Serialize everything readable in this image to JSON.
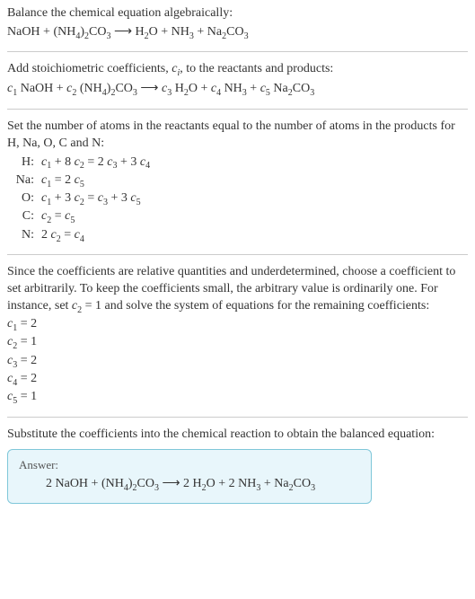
{
  "intro": {
    "line1": "Balance the chemical equation algebraically:",
    "reaction_html": "NaOH + (NH<sub class='sub'>4</sub>)<sub class='sub'>2</sub>CO<sub class='sub'>3</sub>  ⟶  H<sub class='sub'>2</sub>O + NH<sub class='sub'>3</sub> + Na<sub class='sub'>2</sub>CO<sub class='sub'>3</sub>"
  },
  "stoich": {
    "text_html": "Add stoichiometric coefficients, <span class='ital'>c<sub class='sub'>i</sub></span>, to the reactants and products:",
    "reaction_html": "<span class='ital'>c</span><sub class='sub'>1</sub> NaOH + <span class='ital'>c</span><sub class='sub'>2</sub> (NH<sub class='sub'>4</sub>)<sub class='sub'>2</sub>CO<sub class='sub'>3</sub>  ⟶  <span class='ital'>c</span><sub class='sub'>3</sub> H<sub class='sub'>2</sub>O + <span class='ital'>c</span><sub class='sub'>4</sub> NH<sub class='sub'>3</sub> + <span class='ital'>c</span><sub class='sub'>5</sub> Na<sub class='sub'>2</sub>CO<sub class='sub'>3</sub>"
  },
  "atoms": {
    "text": "Set the number of atoms in the reactants equal to the number of atoms in the products for H, Na, O, C and N:",
    "rows": [
      {
        "label": "H:",
        "eq_html": "<span class='ital'>c</span><sub class='sub'>1</sub> + 8 <span class='ital'>c</span><sub class='sub'>2</sub> = 2 <span class='ital'>c</span><sub class='sub'>3</sub> + 3 <span class='ital'>c</span><sub class='sub'>4</sub>"
      },
      {
        "label": "Na:",
        "eq_html": "<span class='ital'>c</span><sub class='sub'>1</sub> = 2 <span class='ital'>c</span><sub class='sub'>5</sub>"
      },
      {
        "label": "O:",
        "eq_html": "<span class='ital'>c</span><sub class='sub'>1</sub> + 3 <span class='ital'>c</span><sub class='sub'>2</sub> = <span class='ital'>c</span><sub class='sub'>3</sub> + 3 <span class='ital'>c</span><sub class='sub'>5</sub>"
      },
      {
        "label": "C:",
        "eq_html": "<span class='ital'>c</span><sub class='sub'>2</sub> = <span class='ital'>c</span><sub class='sub'>5</sub>"
      },
      {
        "label": "N:",
        "eq_html": "2 <span class='ital'>c</span><sub class='sub'>2</sub> = <span class='ital'>c</span><sub class='sub'>4</sub>"
      }
    ]
  },
  "solve": {
    "text_html": "Since the coefficients are relative quantities and underdetermined, choose a coefficient to set arbitrarily. To keep the coefficients small, the arbitrary value is ordinarily one. For instance, set <span class='ital'>c</span><sub class='sub'>2</sub> = 1 and solve the system of equations for the remaining coefficients:",
    "coeffs": [
      "<span class='ital'>c</span><sub class='sub'>1</sub> = 2",
      "<span class='ital'>c</span><sub class='sub'>2</sub> = 1",
      "<span class='ital'>c</span><sub class='sub'>3</sub> = 2",
      "<span class='ital'>c</span><sub class='sub'>4</sub> = 2",
      "<span class='ital'>c</span><sub class='sub'>5</sub> = 1"
    ]
  },
  "final": {
    "text": "Substitute the coefficients into the chemical reaction to obtain the balanced equation:",
    "answer_label": "Answer:",
    "answer_eq_html": "2 NaOH + (NH<sub class='sub'>4</sub>)<sub class='sub'>2</sub>CO<sub class='sub'>3</sub>  ⟶  2 H<sub class='sub'>2</sub>O + 2 NH<sub class='sub'>3</sub> + Na<sub class='sub'>2</sub>CO<sub class='sub'>3</sub>"
  },
  "colors": {
    "rule": "#cccccc",
    "box_border": "#7fc7d9",
    "box_bg": "#e8f6fb"
  }
}
